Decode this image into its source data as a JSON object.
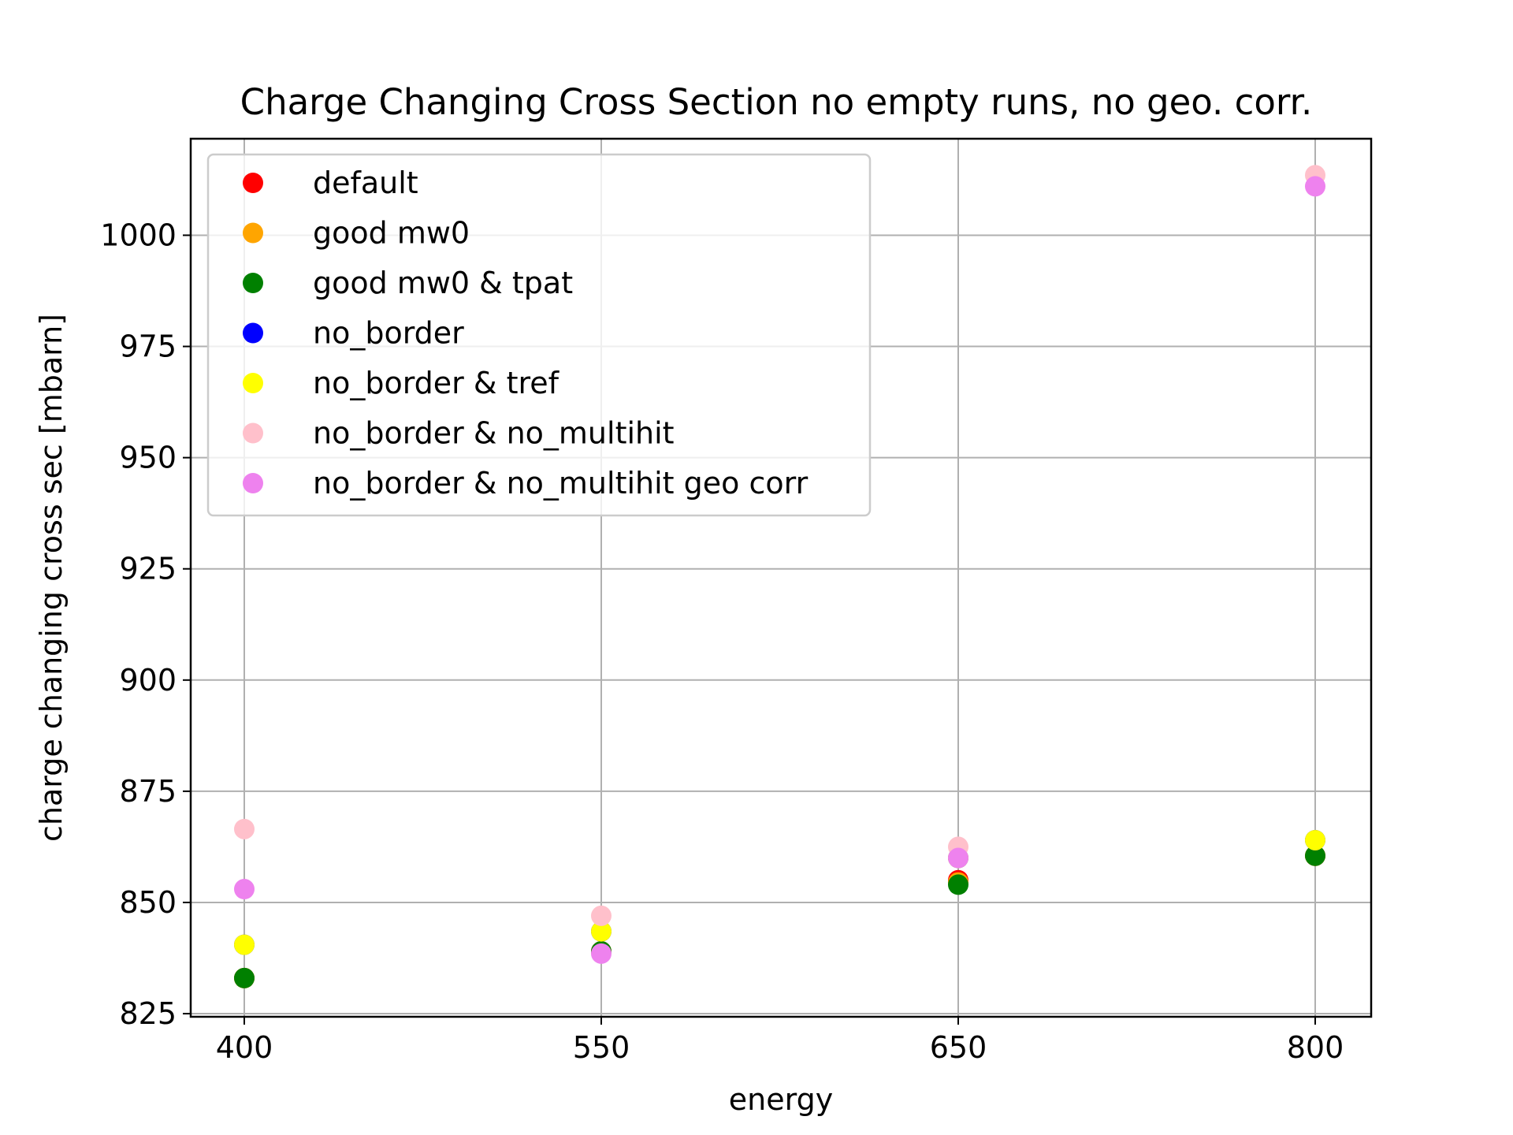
{
  "chart_data": {
    "type": "scatter",
    "title": "Charge Changing Cross Section no empty runs, no geo. corr.",
    "xlabel": "energy",
    "ylabel": "charge changing cross sec [mbarn]",
    "x_categories": [
      "400",
      "550",
      "650",
      "800"
    ],
    "y_ticks": [
      825,
      850,
      875,
      900,
      925,
      950,
      975,
      1000
    ],
    "y_tick_labels": [
      "825",
      "850",
      "875",
      "900",
      "925",
      "950",
      "975",
      "1000"
    ],
    "ylim": [
      824.3,
      1021.7
    ],
    "grid": true,
    "legend_position": "top-left",
    "series": [
      {
        "name": "default",
        "color": "#ff0000",
        "values": [
          833,
          839,
          855,
          860.5
        ]
      },
      {
        "name": "good mw0",
        "color": "#ffa500",
        "values": [
          833,
          839,
          854.5,
          860.5
        ]
      },
      {
        "name": "good mw0 & tpat",
        "color": "#008000",
        "values": [
          833,
          839,
          854,
          860.5
        ]
      },
      {
        "name": "no_border",
        "color": "#0000ff",
        "values": [
          840.5,
          843.5,
          860,
          864
        ]
      },
      {
        "name": "no_border & tref",
        "color": "#ffff00",
        "values": [
          840.5,
          843.5,
          860,
          864
        ]
      },
      {
        "name": "no_border & no_multihit",
        "color": "#ffc0cb",
        "values": [
          866.5,
          847,
          862.5,
          1013.5
        ]
      },
      {
        "name": "no_border & no_multihit geo corr",
        "color": "#ee82ee",
        "values": [
          853,
          838.5,
          860,
          1011
        ]
      }
    ]
  }
}
